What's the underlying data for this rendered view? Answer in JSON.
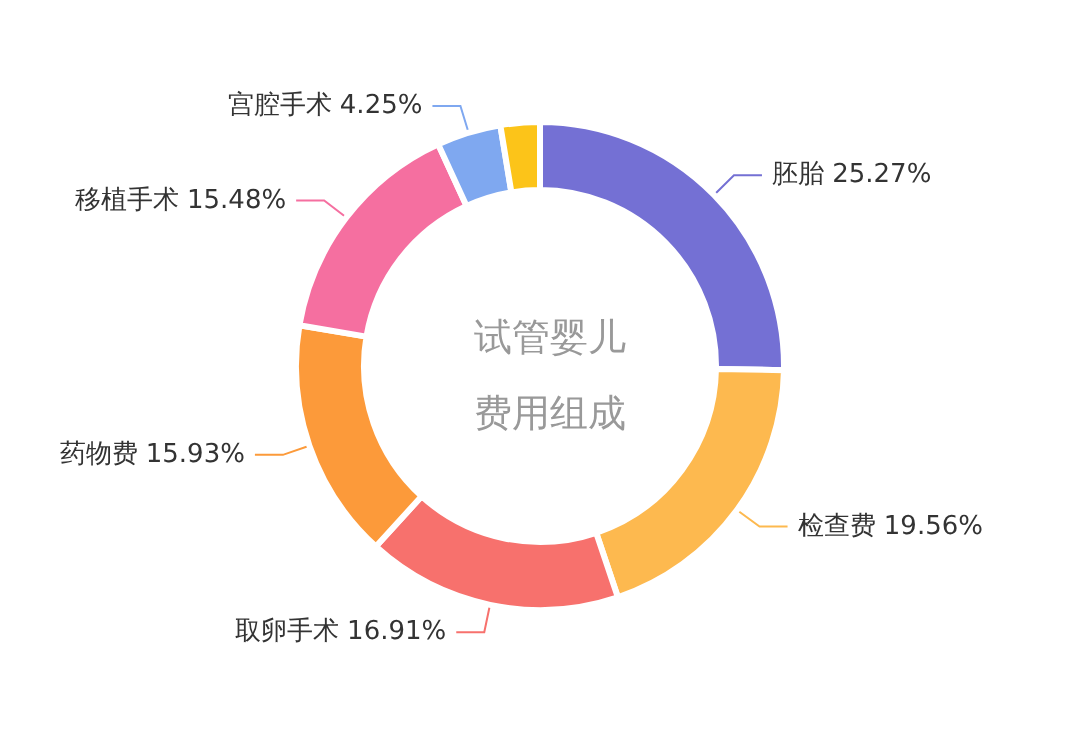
{
  "chart_data": {
    "type": "donut",
    "title": "试管婴儿费用组成",
    "categories": [
      "胚胎",
      "检查费",
      "取卵手术",
      "药物费",
      "移植手术",
      "宫腔手术",
      null
    ],
    "values": [
      25.27,
      19.56,
      16.91,
      15.93,
      15.48,
      4.25,
      2.6
    ],
    "value_labels": [
      "25.27%",
      "19.56%",
      "16.91%",
      "15.93%",
      "15.48%",
      "4.25%",
      null
    ],
    "colors": [
      "#7470d4",
      "#fdb94f",
      "#f7716d",
      "#fc9a3a",
      "#f56fa0",
      "#7fa8f0",
      "#fcc419"
    ],
    "legend": false
  }
}
